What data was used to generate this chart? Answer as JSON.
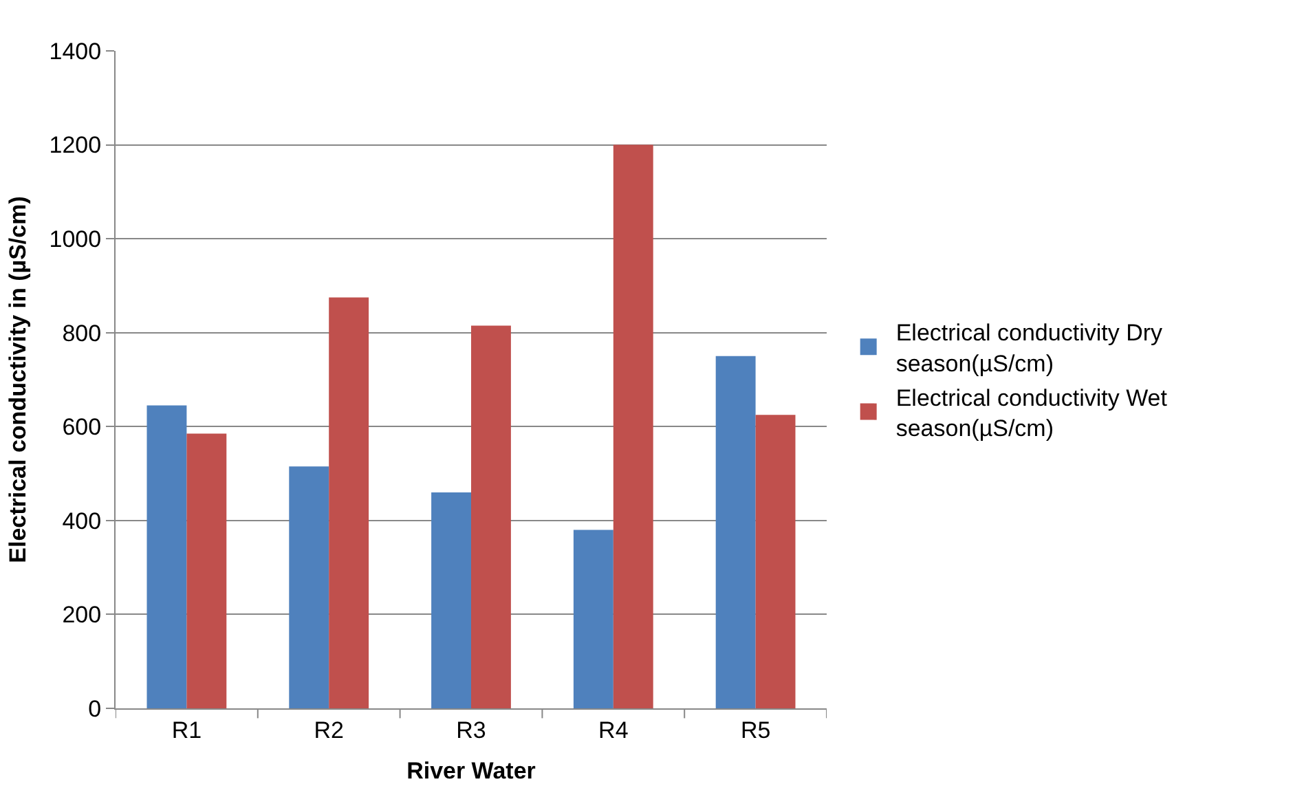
{
  "chart_data": {
    "type": "bar",
    "xlabel": "River Water",
    "ylabel": "Electrical conductivity in (µS/cm)",
    "categories": [
      "R1",
      "R2",
      "R3",
      "R4",
      "R5"
    ],
    "series": [
      {
        "name": "Electrical conductivity Dry season(µS/cm)",
        "color": "#4f81bd",
        "values": [
          645,
          515,
          460,
          380,
          750
        ]
      },
      {
        "name": "Electrical conductivity Wet season(µS/cm)",
        "color": "#c0504d",
        "values": [
          585,
          875,
          815,
          1200,
          625
        ]
      }
    ],
    "ylim": [
      0,
      1400
    ],
    "yticks": [
      0,
      200,
      400,
      600,
      800,
      1000,
      1200,
      1400
    ],
    "grid": "y",
    "legend": "right"
  }
}
